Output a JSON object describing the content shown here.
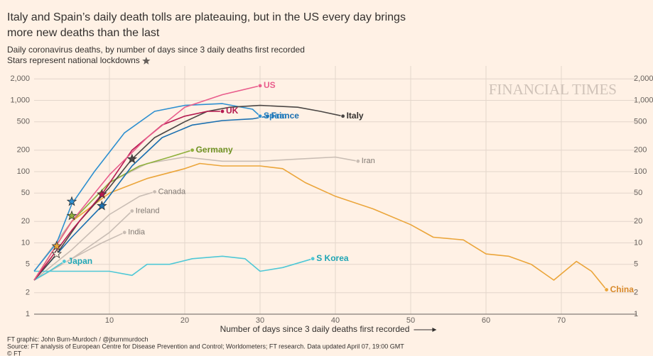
{
  "chart_data": {
    "type": "line",
    "title": [
      "Italy and Spain’s daily death tolls are plateauing, but in the US every day brings",
      "more new deaths than the last"
    ],
    "subtitle": [
      "Daily coronavirus deaths, by number of days since 3 daily deaths first recorded",
      "Stars represent national lockdowns"
    ],
    "watermark": "FINANCIAL TIMES",
    "x_label": "Number of days since 3 daily deaths first recorded",
    "footer": [
      "FT graphic: John Burn-Murdoch / @jburnmurdoch",
      "Source: FT analysis of European Centre for Disease Prevention and Control; Worldometers; FT research. Data updated April 07, 19:00 GMT",
      "© FT"
    ],
    "log_y": true,
    "grid": true,
    "xlim": [
      0,
      80
    ],
    "xticks": [
      10,
      20,
      30,
      40,
      50,
      60,
      70
    ],
    "ylim": [
      1,
      3000
    ],
    "yticks": [
      1,
      2,
      5,
      10,
      20,
      50,
      100,
      200,
      500,
      {
        "value": 1000,
        "label": "1,000"
      },
      {
        "value": 2000,
        "label": "2,000"
      }
    ],
    "series": [
      {
        "name": "Iran",
        "color": "#c9bdb4",
        "label_color": "#807973",
        "x": [
          0,
          5,
          10,
          15,
          20,
          25,
          30,
          35,
          40,
          43
        ],
        "values": [
          4,
          20,
          70,
          130,
          160,
          140,
          140,
          150,
          160,
          140
        ]
      },
      {
        "name": "Canada",
        "color": "#c9bdb4",
        "label_color": "#807973",
        "x": [
          0,
          5,
          10,
          14,
          16
        ],
        "values": [
          3,
          8,
          25,
          45,
          52
        ]
      },
      {
        "name": "Ireland",
        "color": "#c9bdb4",
        "label_color": "#807973",
        "x": [
          0,
          5,
          10,
          13
        ],
        "values": [
          3,
          6,
          14,
          28
        ]
      },
      {
        "name": "India",
        "color": "#c9bdb4",
        "label_color": "#807973",
        "x": [
          0,
          5,
          9,
          12
        ],
        "values": [
          3,
          6,
          10,
          14
        ]
      },
      {
        "name": "China",
        "color": "#eba53a",
        "label_color": "#d8892a",
        "x": [
          0,
          5,
          10,
          15,
          20,
          22,
          25,
          30,
          33,
          36,
          40,
          45,
          50,
          53,
          57,
          60,
          63,
          66,
          69,
          72,
          74,
          76
        ],
        "values": [
          3,
          20,
          50,
          80,
          110,
          130,
          120,
          120,
          110,
          70,
          45,
          30,
          18,
          12,
          11,
          7,
          6.5,
          5,
          3,
          5.5,
          4,
          2.2
        ]
      },
      {
        "name": "S Korea",
        "color": "#4fc8d6",
        "label_color": "#1fa5b5",
        "x": [
          0,
          5,
          10,
          13,
          15,
          18,
          21,
          25,
          28,
          30,
          33,
          37
        ],
        "values": [
          4,
          4,
          4,
          3.5,
          5,
          5,
          6,
          6.5,
          6,
          4,
          4.5,
          6
        ]
      },
      {
        "name": "Japan",
        "color": "#4fc8d6",
        "label_color": "#1fa5b5",
        "x": [
          0,
          2,
          4
        ],
        "values": [
          3,
          4,
          5.5
        ]
      },
      {
        "name": "Germany",
        "color": "#8fb03b",
        "label_color": "#6f9122",
        "x": [
          0,
          5,
          10,
          14,
          18,
          21
        ],
        "values": [
          3,
          20,
          70,
          120,
          160,
          200
        ]
      },
      {
        "name": "France",
        "color": "#1a6fb0",
        "label_color": "#1a6fb0",
        "x": [
          0,
          5,
          9,
          13,
          17,
          21,
          25,
          29,
          31
        ],
        "values": [
          3,
          12,
          33,
          120,
          300,
          450,
          520,
          550,
          600
        ]
      },
      {
        "name": "Spain",
        "color": "#2d8fd0",
        "label_color": "#1f7ec0",
        "x": [
          0,
          3,
          5,
          8,
          12,
          16,
          20,
          25,
          29,
          30
        ],
        "values": [
          4,
          10,
          35,
          100,
          350,
          700,
          850,
          900,
          750,
          600
        ]
      },
      {
        "name": "Italy",
        "color": "#4a4644",
        "label_color": "#33302e",
        "x": [
          0,
          3,
          6,
          10,
          13,
          16,
          20,
          23,
          26,
          30,
          35,
          38,
          41
        ],
        "values": [
          3,
          7,
          20,
          60,
          150,
          300,
          500,
          700,
          800,
          850,
          800,
          700,
          600
        ]
      },
      {
        "name": "UK",
        "color": "#b5194f",
        "label_color": "#b5194f",
        "x": [
          0,
          5,
          9,
          13,
          17,
          20,
          23,
          25
        ],
        "values": [
          3,
          15,
          48,
          200,
          450,
          600,
          700,
          700
        ]
      },
      {
        "name": "US",
        "color": "#e95d8c",
        "label_color": "#e95d8c",
        "x": [
          0,
          5,
          10,
          15,
          20,
          25,
          30
        ],
        "values": [
          3,
          20,
          90,
          300,
          800,
          1200,
          1600
        ]
      }
    ],
    "lockdowns": [
      {
        "x": 13,
        "y": 150,
        "color": "#4a4644"
      },
      {
        "x": 5,
        "y": 38,
        "color": "#2d8fd0"
      },
      {
        "x": 9,
        "y": 33,
        "color": "#1a6fb0"
      },
      {
        "x": 9,
        "y": 48,
        "color": "#b5194f"
      },
      {
        "x": 5,
        "y": 24,
        "color": "#8fb03b"
      },
      {
        "x": 3,
        "y": 9,
        "color": "#eba53a"
      },
      {
        "x": 3,
        "y": 7,
        "color": "#fff1e5"
      }
    ]
  }
}
